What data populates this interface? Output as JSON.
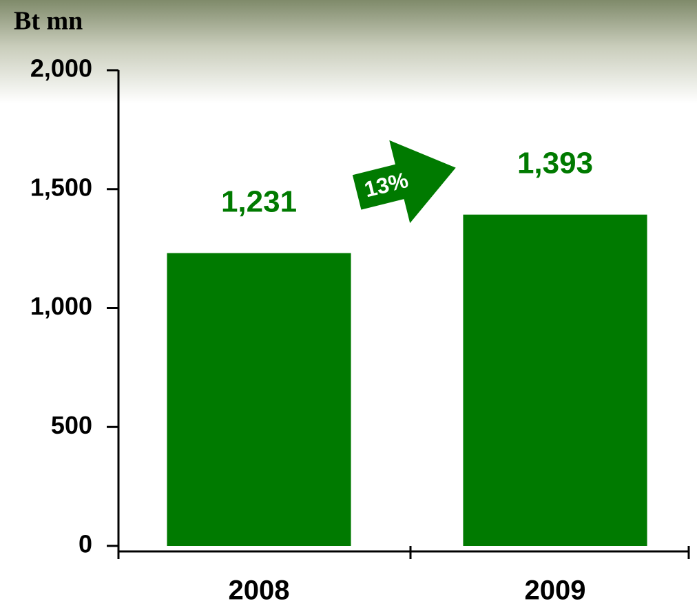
{
  "chart_data": {
    "type": "bar",
    "y_label": "Bt mn",
    "categories": [
      "2008",
      "2009"
    ],
    "values": [
      1231,
      1393
    ],
    "value_labels": [
      "1,231",
      "1,393"
    ],
    "color": "#007a00",
    "ylim": [
      0,
      2000
    ],
    "yticks": [
      0,
      500,
      {
        "value": 1000,
        "label": "1,000"
      },
      {
        "value": 1500,
        "label": "1,500"
      },
      {
        "value": 2000,
        "label": "2,000"
      }
    ],
    "grid": false,
    "annotation": "13%"
  }
}
